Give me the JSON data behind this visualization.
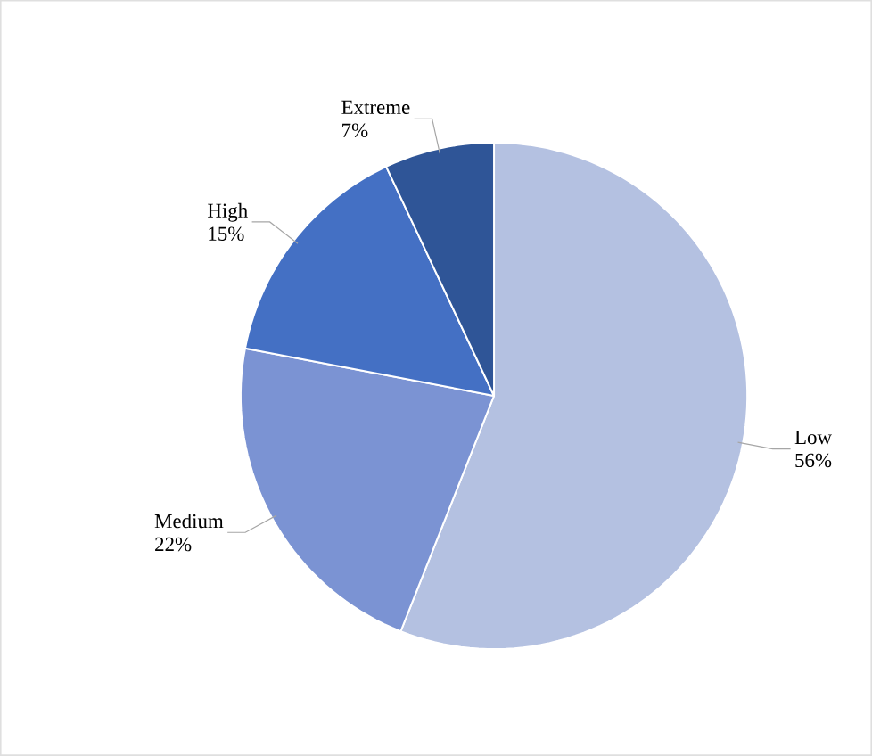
{
  "chart_data": {
    "type": "pie",
    "categories": [
      "Low",
      "Medium",
      "High",
      "Extreme"
    ],
    "values": [
      56,
      22,
      15,
      7
    ],
    "value_labels": [
      "56%",
      "22%",
      "15%",
      "7%"
    ],
    "colors": [
      "#b4c1e1",
      "#7b93d3",
      "#4470c4",
      "#2f5597"
    ]
  }
}
